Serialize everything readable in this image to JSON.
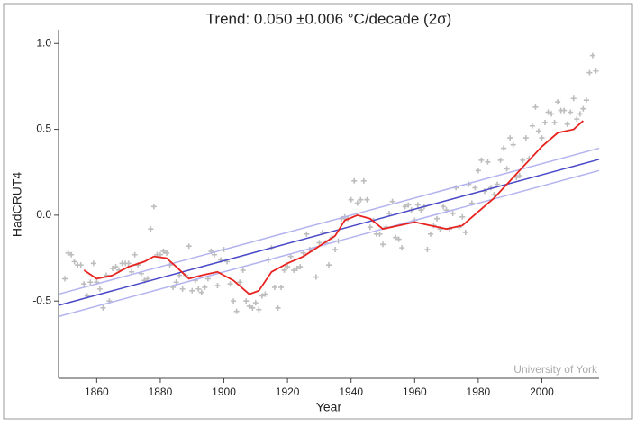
{
  "chart_data": {
    "type": "scatter",
    "title": "Trend: 0.050 ±0.006 °C/decade (2σ)",
    "x_label": "Year",
    "y_label": "HadCRUT4",
    "annotation": "University of York",
    "xlim": [
      1848,
      2018
    ],
    "xticks": [
      1860,
      1880,
      1900,
      1920,
      1940,
      1960,
      1980,
      2000
    ],
    "ylim": [
      -0.95,
      1.08
    ],
    "yticks": [
      -0.5,
      {
        "value": 0,
        "label": "0.0"
      },
      0.5,
      {
        "value": 1,
        "label": "1.0"
      }
    ],
    "series": [
      {
        "mark": "plus",
        "color": "#bdbdbd",
        "x": [
          1850,
          1851,
          1852,
          1853,
          1854,
          1855,
          1856,
          1857,
          1858,
          1859,
          1860,
          1861,
          1862,
          1863,
          1864,
          1865,
          1866,
          1867,
          1868,
          1869,
          1870,
          1871,
          1872,
          1873,
          1874,
          1875,
          1876,
          1877,
          1878,
          1879,
          1880,
          1881,
          1882,
          1883,
          1884,
          1885,
          1886,
          1887,
          1888,
          1889,
          1890,
          1891,
          1892,
          1893,
          1894,
          1895,
          1896,
          1897,
          1898,
          1899,
          1900,
          1901,
          1902,
          1903,
          1904,
          1905,
          1906,
          1907,
          1908,
          1909,
          1910,
          1911,
          1912,
          1913,
          1914,
          1915,
          1916,
          1917,
          1918,
          1919,
          1920,
          1921,
          1922,
          1923,
          1924,
          1925,
          1926,
          1927,
          1928,
          1929,
          1930,
          1931,
          1932,
          1933,
          1934,
          1935,
          1936,
          1937,
          1938,
          1939,
          1940,
          1941,
          1942,
          1943,
          1944,
          1945,
          1946,
          1947,
          1948,
          1949,
          1950,
          1951,
          1952,
          1953,
          1954,
          1955,
          1956,
          1957,
          1958,
          1959,
          1960,
          1961,
          1962,
          1963,
          1964,
          1965,
          1966,
          1967,
          1968,
          1969,
          1970,
          1971,
          1972,
          1973,
          1974,
          1975,
          1976,
          1977,
          1978,
          1979,
          1980,
          1981,
          1982,
          1983,
          1984,
          1985,
          1986,
          1987,
          1988,
          1989,
          1990,
          1991,
          1992,
          1993,
          1994,
          1995,
          1996,
          1997,
          1998,
          1999,
          2000,
          2001,
          2002,
          2003,
          2004,
          2005,
          2006,
          2007,
          2008,
          2009,
          2010,
          2011,
          2012,
          2013,
          2014,
          2015,
          2016,
          2017
        ],
        "values": [
          -0.37,
          -0.22,
          -0.23,
          -0.27,
          -0.29,
          -0.29,
          -0.4,
          -0.47,
          -0.39,
          -0.28,
          -0.39,
          -0.43,
          -0.54,
          -0.35,
          -0.5,
          -0.31,
          -0.3,
          -0.32,
          -0.28,
          -0.28,
          -0.28,
          -0.33,
          -0.23,
          -0.29,
          -0.34,
          -0.38,
          -0.37,
          -0.08,
          0.05,
          -0.23,
          -0.23,
          -0.21,
          -0.22,
          -0.29,
          -0.42,
          -0.39,
          -0.35,
          -0.43,
          -0.35,
          -0.18,
          -0.44,
          -0.38,
          -0.43,
          -0.45,
          -0.42,
          -0.37,
          -0.21,
          -0.23,
          -0.41,
          -0.26,
          -0.2,
          -0.27,
          -0.4,
          -0.5,
          -0.56,
          -0.39,
          -0.32,
          -0.5,
          -0.53,
          -0.54,
          -0.51,
          -0.55,
          -0.47,
          -0.46,
          -0.26,
          -0.19,
          -0.42,
          -0.54,
          -0.42,
          -0.32,
          -0.3,
          -0.24,
          -0.32,
          -0.31,
          -0.3,
          -0.22,
          -0.11,
          -0.2,
          -0.2,
          -0.36,
          -0.16,
          -0.1,
          -0.16,
          -0.29,
          -0.13,
          -0.2,
          -0.15,
          -0.02,
          -0.01,
          -0.02,
          0.09,
          0.2,
          0.07,
          0.09,
          0.2,
          0.09,
          -0.07,
          -0.03,
          -0.11,
          -0.11,
          -0.17,
          -0.07,
          0.01,
          0.08,
          -0.13,
          -0.14,
          -0.19,
          0.05,
          0.06,
          0.03,
          -0.03,
          0.06,
          0.03,
          0.05,
          -0.2,
          -0.11,
          -0.06,
          -0.02,
          -0.08,
          0.05,
          0.03,
          -0.08,
          0.01,
          0.16,
          -0.07,
          -0.01,
          -0.1,
          0.18,
          0.07,
          0.16,
          0.26,
          0.32,
          0.14,
          0.31,
          0.16,
          0.12,
          0.18,
          0.32,
          0.39,
          0.27,
          0.45,
          0.41,
          0.22,
          0.23,
          0.32,
          0.45,
          0.33,
          0.52,
          0.63,
          0.49,
          0.45,
          0.54,
          0.6,
          0.59,
          0.54,
          0.66,
          0.61,
          0.61,
          0.53,
          0.6,
          0.68,
          0.56,
          0.59,
          0.62,
          0.67,
          0.83,
          0.93,
          0.84
        ]
      },
      {
        "mark": "line",
        "color": "#b3b3f0",
        "width": 1.5,
        "x": [
          1848,
          2018
        ],
        "values": [
          -0.46,
          0.39
        ]
      },
      {
        "mark": "line",
        "color": "#b3b3f0",
        "width": 1.5,
        "x": [
          1848,
          2018
        ],
        "values": [
          -0.59,
          0.26
        ]
      },
      {
        "mark": "line",
        "color": "#4a4ac8",
        "width": 1.5,
        "x": [
          1848,
          2018
        ],
        "values": [
          -0.525,
          0.325
        ]
      },
      {
        "mark": "line",
        "color": "#e8231f",
        "width": 1.8,
        "x": [
          1856,
          1860,
          1865,
          1870,
          1875,
          1878,
          1882,
          1885,
          1889,
          1893,
          1898,
          1903,
          1908,
          1911,
          1915,
          1920,
          1925,
          1930,
          1935,
          1938,
          1942,
          1946,
          1950,
          1955,
          1960,
          1965,
          1970,
          1975,
          1980,
          1985,
          1990,
          1995,
          2000,
          2005,
          2010,
          2013
        ],
        "values": [
          -0.32,
          -0.37,
          -0.35,
          -0.3,
          -0.27,
          -0.24,
          -0.25,
          -0.3,
          -0.37,
          -0.35,
          -0.33,
          -0.38,
          -0.46,
          -0.44,
          -0.33,
          -0.28,
          -0.24,
          -0.18,
          -0.12,
          -0.03,
          0.0,
          -0.02,
          -0.08,
          -0.06,
          -0.04,
          -0.06,
          -0.08,
          -0.06,
          0.02,
          0.1,
          0.2,
          0.3,
          0.4,
          0.48,
          0.5,
          0.55
        ]
      }
    ]
  }
}
